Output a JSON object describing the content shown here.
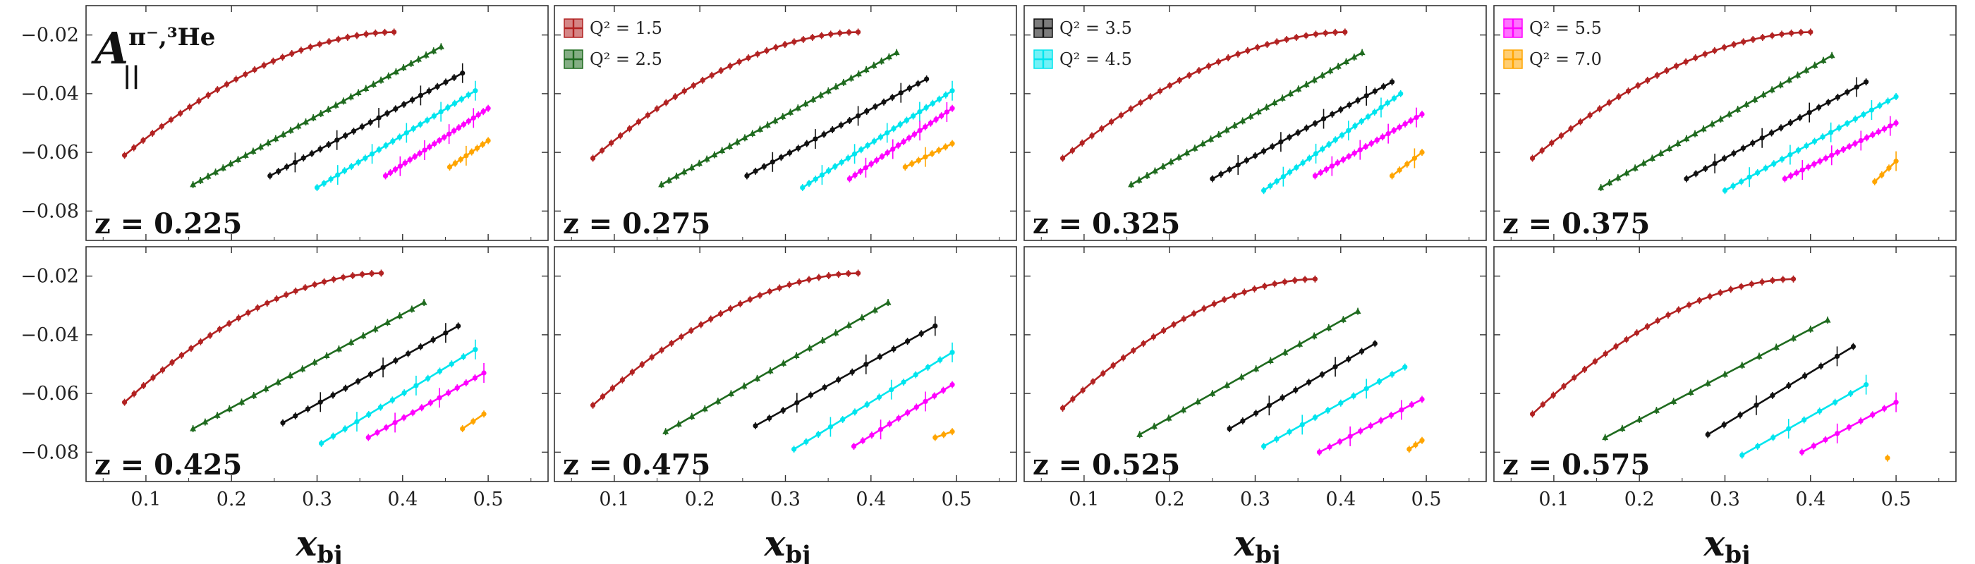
{
  "chart_data": {
    "type": "line",
    "title_main": "A",
    "title_sub": "||",
    "title_sup": "π⁻,³He",
    "xlabel_main": "x",
    "xlabel_sub": "bj",
    "ylabel": "",
    "xlim": [
      0.03,
      0.57
    ],
    "ylim": [
      -0.09,
      -0.01
    ],
    "xticks": [
      0.1,
      0.2,
      0.3,
      0.4,
      0.5
    ],
    "xtick_labels": [
      "0.1",
      "0.2",
      "0.3",
      "0.4",
      "0.5"
    ],
    "yticks": [
      -0.08,
      -0.06,
      -0.04,
      -0.02
    ],
    "ytick_labels": [
      "−0.08",
      "−0.06",
      "−0.04",
      "−0.02"
    ],
    "grid": false,
    "legend_placement": "top-left",
    "series_styles": [
      {
        "name": "Q² = 1.5",
        "q2_label": "1.5",
        "color": "#b22222",
        "marker": "circle"
      },
      {
        "name": "Q² = 2.5",
        "q2_label": "2.5",
        "color": "#1f6b1f",
        "marker": "triangle"
      },
      {
        "name": "Q² = 3.5",
        "q2_label": "3.5",
        "color": "#111111",
        "marker": "circle"
      },
      {
        "name": "Q² = 4.5",
        "q2_label": "4.5",
        "color": "#00e5ee",
        "marker": "circle"
      },
      {
        "name": "Q² = 5.5",
        "q2_label": "5.5",
        "color": "#ff00ff",
        "marker": "circle"
      },
      {
        "name": "Q² = 7.0",
        "q2_label": "7.0",
        "color": "#ffa500",
        "marker": "circle"
      }
    ],
    "legend_groups": [
      {
        "panel": 1,
        "series": [
          0,
          1
        ]
      },
      {
        "panel": 2,
        "series": [
          2,
          3
        ]
      },
      {
        "panel": 3,
        "series": [
          4,
          5
        ]
      }
    ],
    "panels": [
      {
        "label": "z = 0.225",
        "series": [
          {
            "x_start": 0.075,
            "x_end": 0.39,
            "y_start": -0.061,
            "y_end": -0.019,
            "n": 30,
            "kind": "curve"
          },
          {
            "x_start": 0.155,
            "x_end": 0.445,
            "y_start": -0.071,
            "y_end": -0.024,
            "n": 34,
            "kind": "straight"
          },
          {
            "x_start": 0.245,
            "x_end": 0.47,
            "y_start": -0.068,
            "y_end": -0.033,
            "n": 24,
            "kind": "straight"
          },
          {
            "x_start": 0.3,
            "x_end": 0.485,
            "y_start": -0.072,
            "y_end": -0.039,
            "n": 24,
            "kind": "straight"
          },
          {
            "x_start": 0.38,
            "x_end": 0.5,
            "y_start": -0.068,
            "y_end": -0.045,
            "n": 22,
            "kind": "straight"
          },
          {
            "x_start": 0.455,
            "x_end": 0.5,
            "y_start": -0.065,
            "y_end": -0.056,
            "n": 8,
            "kind": "straight"
          }
        ]
      },
      {
        "label": "z = 0.275",
        "series": [
          {
            "x_start": 0.075,
            "x_end": 0.385,
            "y_start": -0.062,
            "y_end": -0.019,
            "n": 30,
            "kind": "curve"
          },
          {
            "x_start": 0.155,
            "x_end": 0.43,
            "y_start": -0.071,
            "y_end": -0.026,
            "n": 32,
            "kind": "straight"
          },
          {
            "x_start": 0.255,
            "x_end": 0.465,
            "y_start": -0.068,
            "y_end": -0.035,
            "n": 22,
            "kind": "straight"
          },
          {
            "x_start": 0.32,
            "x_end": 0.495,
            "y_start": -0.072,
            "y_end": -0.039,
            "n": 24,
            "kind": "straight"
          },
          {
            "x_start": 0.375,
            "x_end": 0.495,
            "y_start": -0.069,
            "y_end": -0.045,
            "n": 20,
            "kind": "straight"
          },
          {
            "x_start": 0.44,
            "x_end": 0.495,
            "y_start": -0.065,
            "y_end": -0.057,
            "n": 8,
            "kind": "straight"
          }
        ]
      },
      {
        "label": "z = 0.325",
        "series": [
          {
            "x_start": 0.075,
            "x_end": 0.405,
            "y_start": -0.062,
            "y_end": -0.019,
            "n": 30,
            "kind": "curve"
          },
          {
            "x_start": 0.155,
            "x_end": 0.425,
            "y_start": -0.071,
            "y_end": -0.026,
            "n": 30,
            "kind": "straight"
          },
          {
            "x_start": 0.25,
            "x_end": 0.46,
            "y_start": -0.069,
            "y_end": -0.036,
            "n": 22,
            "kind": "straight"
          },
          {
            "x_start": 0.31,
            "x_end": 0.47,
            "y_start": -0.073,
            "y_end": -0.04,
            "n": 22,
            "kind": "straight"
          },
          {
            "x_start": 0.37,
            "x_end": 0.495,
            "y_start": -0.068,
            "y_end": -0.047,
            "n": 20,
            "kind": "straight"
          },
          {
            "x_start": 0.46,
            "x_end": 0.495,
            "y_start": -0.068,
            "y_end": -0.06,
            "n": 5,
            "kind": "straight"
          }
        ]
      },
      {
        "label": "z = 0.375",
        "series": [
          {
            "x_start": 0.075,
            "x_end": 0.4,
            "y_start": -0.062,
            "y_end": -0.019,
            "n": 30,
            "kind": "curve"
          },
          {
            "x_start": 0.155,
            "x_end": 0.425,
            "y_start": -0.072,
            "y_end": -0.027,
            "n": 28,
            "kind": "straight"
          },
          {
            "x_start": 0.255,
            "x_end": 0.465,
            "y_start": -0.069,
            "y_end": -0.036,
            "n": 20,
            "kind": "straight"
          },
          {
            "x_start": 0.3,
            "x_end": 0.5,
            "y_start": -0.073,
            "y_end": -0.041,
            "n": 22,
            "kind": "straight"
          },
          {
            "x_start": 0.37,
            "x_end": 0.5,
            "y_start": -0.069,
            "y_end": -0.05,
            "n": 20,
            "kind": "straight"
          },
          {
            "x_start": 0.475,
            "x_end": 0.5,
            "y_start": -0.07,
            "y_end": -0.063,
            "n": 4,
            "kind": "straight"
          }
        ]
      },
      {
        "label": "z = 0.425",
        "series": [
          {
            "x_start": 0.075,
            "x_end": 0.375,
            "y_start": -0.063,
            "y_end": -0.019,
            "n": 28,
            "kind": "curve"
          },
          {
            "x_start": 0.155,
            "x_end": 0.425,
            "y_start": -0.072,
            "y_end": -0.029,
            "n": 20,
            "kind": "straight"
          },
          {
            "x_start": 0.26,
            "x_end": 0.465,
            "y_start": -0.07,
            "y_end": -0.037,
            "n": 15,
            "kind": "straight"
          },
          {
            "x_start": 0.305,
            "x_end": 0.485,
            "y_start": -0.077,
            "y_end": -0.045,
            "n": 14,
            "kind": "straight"
          },
          {
            "x_start": 0.36,
            "x_end": 0.495,
            "y_start": -0.075,
            "y_end": -0.053,
            "n": 14,
            "kind": "straight"
          },
          {
            "x_start": 0.47,
            "x_end": 0.495,
            "y_start": -0.072,
            "y_end": -0.067,
            "n": 3,
            "kind": "straight"
          }
        ]
      },
      {
        "label": "z = 0.475",
        "series": [
          {
            "x_start": 0.075,
            "x_end": 0.385,
            "y_start": -0.064,
            "y_end": -0.019,
            "n": 28,
            "kind": "curve"
          },
          {
            "x_start": 0.16,
            "x_end": 0.42,
            "y_start": -0.073,
            "y_end": -0.029,
            "n": 18,
            "kind": "straight"
          },
          {
            "x_start": 0.265,
            "x_end": 0.475,
            "y_start": -0.071,
            "y_end": -0.037,
            "n": 14,
            "kind": "straight"
          },
          {
            "x_start": 0.31,
            "x_end": 0.495,
            "y_start": -0.079,
            "y_end": -0.046,
            "n": 14,
            "kind": "straight"
          },
          {
            "x_start": 0.38,
            "x_end": 0.495,
            "y_start": -0.078,
            "y_end": -0.057,
            "n": 12,
            "kind": "straight"
          },
          {
            "x_start": 0.475,
            "x_end": 0.495,
            "y_start": -0.075,
            "y_end": -0.073,
            "n": 3,
            "kind": "straight"
          }
        ]
      },
      {
        "label": "z = 0.525",
        "series": [
          {
            "x_start": 0.075,
            "x_end": 0.37,
            "y_start": -0.065,
            "y_end": -0.021,
            "n": 26,
            "kind": "curve"
          },
          {
            "x_start": 0.165,
            "x_end": 0.42,
            "y_start": -0.074,
            "y_end": -0.032,
            "n": 16,
            "kind": "straight"
          },
          {
            "x_start": 0.27,
            "x_end": 0.44,
            "y_start": -0.072,
            "y_end": -0.043,
            "n": 12,
            "kind": "straight"
          },
          {
            "x_start": 0.31,
            "x_end": 0.475,
            "y_start": -0.078,
            "y_end": -0.051,
            "n": 12,
            "kind": "straight"
          },
          {
            "x_start": 0.375,
            "x_end": 0.495,
            "y_start": -0.08,
            "y_end": -0.062,
            "n": 11,
            "kind": "straight"
          },
          {
            "x_start": 0.48,
            "x_end": 0.495,
            "y_start": -0.079,
            "y_end": -0.076,
            "n": 3,
            "kind": "straight"
          }
        ]
      },
      {
        "label": "z = 0.575",
        "series": [
          {
            "x_start": 0.075,
            "x_end": 0.38,
            "y_start": -0.067,
            "y_end": -0.021,
            "n": 26,
            "kind": "curve"
          },
          {
            "x_start": 0.16,
            "x_end": 0.42,
            "y_start": -0.075,
            "y_end": -0.035,
            "n": 14,
            "kind": "straight"
          },
          {
            "x_start": 0.28,
            "x_end": 0.45,
            "y_start": -0.074,
            "y_end": -0.044,
            "n": 10,
            "kind": "straight"
          },
          {
            "x_start": 0.32,
            "x_end": 0.465,
            "y_start": -0.081,
            "y_end": -0.057,
            "n": 9,
            "kind": "straight"
          },
          {
            "x_start": 0.39,
            "x_end": 0.5,
            "y_start": -0.08,
            "y_end": -0.063,
            "n": 9,
            "kind": "straight"
          },
          {
            "x_start": 0.49,
            "x_end": 0.49,
            "y_start": -0.082,
            "y_end": -0.082,
            "n": 1,
            "kind": "straight"
          }
        ]
      }
    ]
  }
}
